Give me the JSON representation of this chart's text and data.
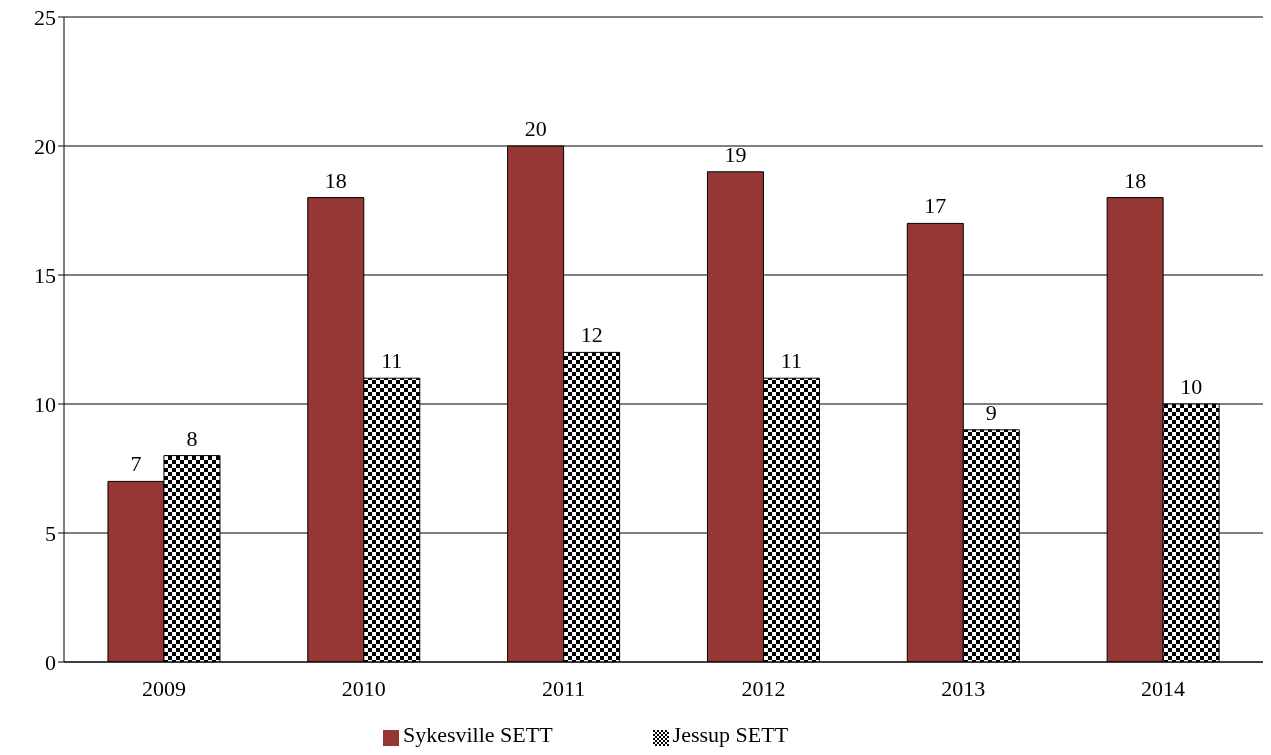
{
  "chart_data": {
    "type": "bar",
    "categories": [
      "2009",
      "2010",
      "2011",
      "2012",
      "2013",
      "2014"
    ],
    "series": [
      {
        "name": "Sykesville SETT",
        "color": "#943735",
        "values": [
          7,
          18,
          20,
          19,
          17,
          18
        ]
      },
      {
        "name": "Jessup SETT",
        "color": "#000000",
        "values": [
          8,
          11,
          12,
          11,
          9,
          10
        ]
      }
    ],
    "ylim": [
      0,
      25
    ],
    "yticks": [
      0,
      5,
      10,
      15,
      20,
      25
    ],
    "grid": "y",
    "legend": "bottom",
    "data_labels": true
  }
}
